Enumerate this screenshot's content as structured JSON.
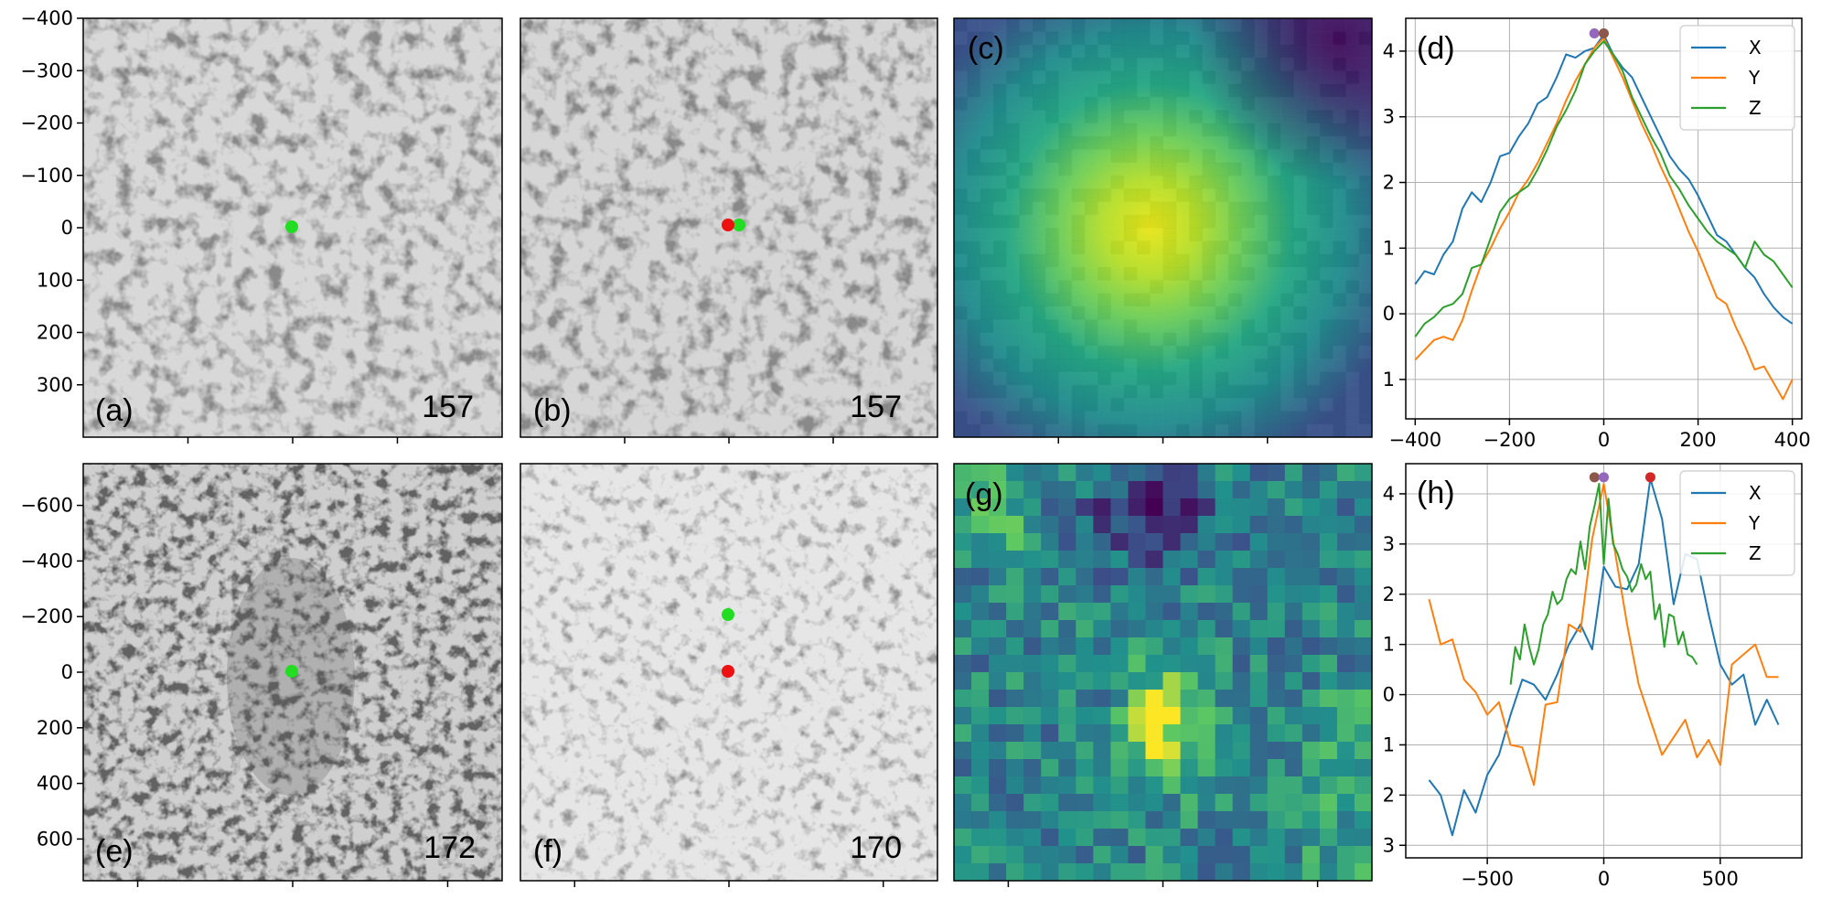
{
  "panels": {
    "a": {
      "label": "(a)",
      "slice": "157"
    },
    "b": {
      "label": "(b)",
      "slice": "157"
    },
    "c": {
      "label": "(c)"
    },
    "d": {
      "label": "(d)"
    },
    "e": {
      "label": "(e)",
      "slice": "172"
    },
    "f": {
      "label": "(f)",
      "slice": "170"
    },
    "g": {
      "label": "(g)"
    },
    "h": {
      "label": "(h)"
    }
  },
  "colors": {
    "X": "#1f77b4",
    "Y": "#ff7f0e",
    "Z": "#2ca02c",
    "peak_red": "#d62728",
    "peak_purple": "#9467bd",
    "peak_brown": "#8c564b",
    "marker_green": "#22dd22",
    "marker_red": "#ee1111"
  },
  "image_axes": {
    "top_yticks": [
      "−400",
      "−300",
      "−200",
      "−100",
      "0",
      "100",
      "200",
      "300"
    ],
    "top_range": [
      -400,
      400
    ],
    "bottom_yticks": [
      "−600",
      "−400",
      "−200",
      "0",
      "200",
      "400",
      "600"
    ],
    "bottom_range": [
      -750,
      750
    ]
  },
  "chart_data": [
    {
      "type": "line",
      "panel": "(d)",
      "x": [
        -400,
        -380,
        -360,
        -340,
        -320,
        -300,
        -280,
        -260,
        -240,
        -220,
        -200,
        -180,
        -160,
        -140,
        -120,
        -100,
        -80,
        -60,
        -40,
        -20,
        0,
        20,
        40,
        60,
        80,
        100,
        120,
        140,
        160,
        180,
        200,
        220,
        240,
        260,
        280,
        300,
        320,
        340,
        360,
        380,
        400
      ],
      "xlim": [
        -420,
        420
      ],
      "ylim": [
        -1.6,
        4.5
      ],
      "xticks": [
        -400,
        -200,
        0,
        200,
        400
      ],
      "xtick_labels": [
        "−400",
        "−200",
        "0",
        "200",
        "400"
      ],
      "yticks": [
        4,
        3,
        2,
        1,
        0,
        -1
      ],
      "ytick_labels": [
        "4",
        "3",
        "2",
        "1",
        "0",
        "1"
      ],
      "grid": true,
      "legend": "top-right",
      "series": [
        {
          "name": "X",
          "values": [
            0.45,
            0.65,
            0.6,
            0.9,
            1.1,
            1.6,
            1.85,
            1.7,
            2.0,
            2.4,
            2.45,
            2.7,
            2.9,
            3.2,
            3.3,
            3.6,
            3.95,
            3.9,
            4.0,
            4.05,
            4.25,
            3.95,
            3.75,
            3.6,
            3.3,
            3.0,
            2.7,
            2.4,
            2.2,
            2.05,
            1.8,
            1.5,
            1.2,
            1.1,
            0.9,
            0.7,
            0.55,
            0.3,
            0.1,
            -0.05,
            -0.15
          ]
        },
        {
          "name": "Y",
          "values": [
            -0.7,
            -0.55,
            -0.4,
            -0.35,
            -0.4,
            -0.1,
            0.35,
            0.75,
            1.0,
            1.3,
            1.55,
            1.85,
            2.05,
            2.3,
            2.6,
            2.9,
            3.25,
            3.55,
            3.8,
            4.05,
            4.2,
            3.9,
            3.6,
            3.25,
            2.9,
            2.6,
            2.25,
            1.95,
            1.6,
            1.25,
            0.95,
            0.6,
            0.25,
            0.15,
            -0.2,
            -0.5,
            -0.85,
            -0.8,
            -1.05,
            -1.3,
            -1.0
          ]
        },
        {
          "name": "Z",
          "values": [
            -0.35,
            -0.15,
            -0.05,
            0.1,
            0.15,
            0.3,
            0.7,
            0.75,
            1.15,
            1.55,
            1.75,
            1.85,
            1.95,
            2.2,
            2.5,
            2.85,
            3.1,
            3.4,
            3.8,
            4.0,
            4.15,
            3.95,
            3.7,
            3.3,
            3.0,
            2.7,
            2.45,
            2.1,
            1.9,
            1.65,
            1.45,
            1.25,
            1.1,
            1.0,
            0.9,
            0.7,
            1.1,
            0.9,
            0.8,
            0.6,
            0.4
          ]
        }
      ],
      "peaks": [
        {
          "x": -20,
          "y": 4.27,
          "color": "#9467bd"
        },
        {
          "x": 0,
          "y": 4.27,
          "color": "#8c564b"
        }
      ]
    },
    {
      "type": "line",
      "panel": "(h)",
      "xlim": [
        -850,
        850
      ],
      "ylim": [
        -3.25,
        4.6
      ],
      "xticks": [
        -500,
        0,
        500
      ],
      "xtick_labels": [
        "−500",
        "0",
        "500"
      ],
      "yticks": [
        4,
        3,
        2,
        1,
        0,
        -1,
        -2,
        -3
      ],
      "ytick_labels": [
        "4",
        "3",
        "2",
        "1",
        "0",
        "1",
        "2",
        "3"
      ],
      "grid": true,
      "legend": "top-right",
      "series": [
        {
          "name": "X",
          "x": [
            -750,
            -700,
            -650,
            -600,
            -550,
            -500,
            -450,
            -400,
            -350,
            -300,
            -250,
            -200,
            -150,
            -100,
            -50,
            0,
            50,
            100,
            150,
            200,
            250,
            300,
            350,
            400,
            450,
            500,
            550,
            600,
            650,
            700,
            750
          ],
          "values": [
            -1.7,
            -2.0,
            -2.8,
            -1.9,
            -2.35,
            -1.6,
            -1.2,
            -0.4,
            0.3,
            0.2,
            -0.1,
            0.4,
            1.0,
            1.4,
            0.9,
            2.55,
            2.15,
            2.1,
            2.6,
            4.3,
            3.5,
            1.8,
            2.8,
            2.7,
            1.6,
            0.6,
            0.2,
            0.4,
            -0.6,
            -0.1,
            -0.6
          ]
        },
        {
          "name": "Y",
          "x": [
            -750,
            -700,
            -650,
            -600,
            -550,
            -500,
            -450,
            -400,
            -350,
            -300,
            -250,
            -200,
            -150,
            -100,
            -50,
            0,
            50,
            100,
            150,
            200,
            250,
            300,
            350,
            400,
            450,
            500,
            550,
            600,
            650,
            700,
            750
          ],
          "values": [
            1.9,
            1.0,
            1.1,
            0.3,
            0.05,
            -0.4,
            -0.15,
            -1.0,
            -1.05,
            -1.8,
            -0.2,
            -0.15,
            1.4,
            1.25,
            3.1,
            4.2,
            2.8,
            1.4,
            0.2,
            -0.5,
            -1.2,
            -0.85,
            -0.5,
            -1.25,
            -0.9,
            -1.4,
            0.6,
            0.8,
            1.0,
            0.35,
            0.35
          ]
        },
        {
          "name": "Z",
          "x": [
            -400,
            -380,
            -360,
            -340,
            -320,
            -300,
            -280,
            -260,
            -240,
            -220,
            -200,
            -180,
            -160,
            -140,
            -120,
            -100,
            -80,
            -60,
            -40,
            -20,
            0,
            20,
            40,
            60,
            80,
            100,
            120,
            140,
            160,
            180,
            200,
            220,
            240,
            260,
            280,
            300,
            320,
            340,
            360,
            380,
            400
          ],
          "values": [
            0.2,
            0.95,
            0.7,
            1.4,
            0.95,
            0.6,
            0.9,
            1.4,
            1.6,
            2.05,
            1.8,
            1.9,
            2.3,
            2.5,
            2.4,
            3.05,
            2.5,
            3.35,
            3.75,
            4.2,
            2.6,
            3.9,
            3.0,
            2.8,
            2.5,
            2.35,
            2.05,
            2.2,
            2.6,
            2.3,
            2.45,
            1.5,
            1.8,
            0.95,
            1.6,
            1.55,
            1.0,
            1.25,
            0.8,
            0.75,
            0.6
          ]
        }
      ],
      "peaks": [
        {
          "x": -40,
          "y": 4.33,
          "color": "#8c564b"
        },
        {
          "x": 0,
          "y": 4.33,
          "color": "#9467bd"
        },
        {
          "x": 200,
          "y": 4.33,
          "color": "#d62728"
        }
      ]
    }
  ]
}
